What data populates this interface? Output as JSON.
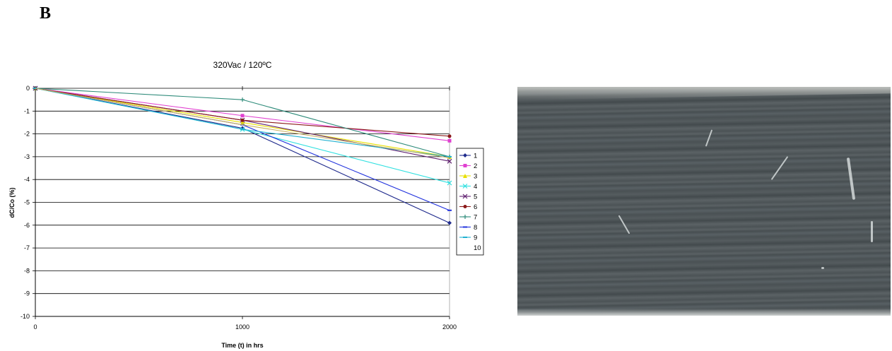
{
  "panel_label": "B",
  "chart_data": {
    "type": "line",
    "title": "320Vac / 120ºC",
    "xlabel": "Time (t) in hrs",
    "ylabel": "dC/Co (%)",
    "xlim": [
      0,
      2000
    ],
    "ylim": [
      -10,
      0
    ],
    "x_ticks": [
      0,
      1000,
      2000
    ],
    "y_ticks": [
      0,
      -1,
      -2,
      -3,
      -4,
      -5,
      -6,
      -7,
      -8,
      -9,
      -10
    ],
    "grid": "horizontal",
    "legend_position": "right",
    "series": [
      {
        "name": "1",
        "color": "#1f2a8c",
        "marker": "diamond",
        "x": [
          0,
          1000,
          2000
        ],
        "y": [
          0,
          -1.75,
          -5.9
        ]
      },
      {
        "name": "2",
        "color": "#e040d0",
        "marker": "square",
        "x": [
          0,
          1000,
          2000
        ],
        "y": [
          0,
          -1.2,
          -2.3
        ]
      },
      {
        "name": "3",
        "color": "#e8e000",
        "marker": "triangle",
        "x": [
          0,
          1000,
          2000
        ],
        "y": [
          0,
          -1.5,
          -3.0
        ]
      },
      {
        "name": "4",
        "color": "#30e0e0",
        "marker": "x",
        "x": [
          0,
          1000,
          2000
        ],
        "y": [
          0,
          -1.8,
          -4.15
        ]
      },
      {
        "name": "5",
        "color": "#602070",
        "marker": "x",
        "x": [
          0,
          1000,
          2000
        ],
        "y": [
          0,
          -1.4,
          -3.2
        ]
      },
      {
        "name": "6",
        "color": "#8b1a1a",
        "marker": "circle",
        "x": [
          0,
          1000,
          2000
        ],
        "y": [
          0,
          -1.4,
          -2.1
        ]
      },
      {
        "name": "7",
        "color": "#2e8b7a",
        "marker": "plus",
        "x": [
          0,
          1000,
          2000
        ],
        "y": [
          0,
          -0.5,
          -3.0
        ]
      },
      {
        "name": "8",
        "color": "#2233dd",
        "marker": "dash",
        "x": [
          0,
          1000,
          2000
        ],
        "y": [
          0,
          -1.6,
          -5.35
        ]
      },
      {
        "name": "9",
        "color": "#20b0d0",
        "marker": "dash",
        "x": [
          0,
          1000,
          2000
        ],
        "y": [
          0,
          -1.8,
          -3.0
        ]
      },
      {
        "name": "10",
        "color": "#c8b060",
        "marker": "none",
        "x": [
          0,
          1000,
          2000
        ],
        "y": [
          0,
          -1.6,
          -3.05
        ]
      }
    ]
  },
  "colors": {
    "axis": "#000000",
    "grid": "#000000",
    "photo_base": "#4f5659"
  }
}
